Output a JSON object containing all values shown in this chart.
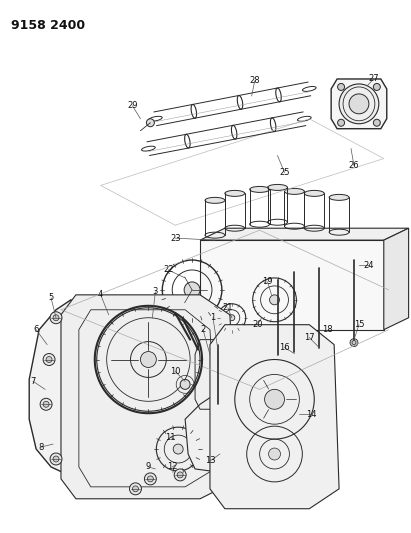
{
  "title": "9158 2400",
  "bg_color": "#ffffff",
  "fig_width": 4.11,
  "fig_height": 5.33,
  "dpi": 100,
  "line_color": "#2a2a2a",
  "text_color": "#111111",
  "label_fontsize": 6.5,
  "title_fontsize": 9
}
